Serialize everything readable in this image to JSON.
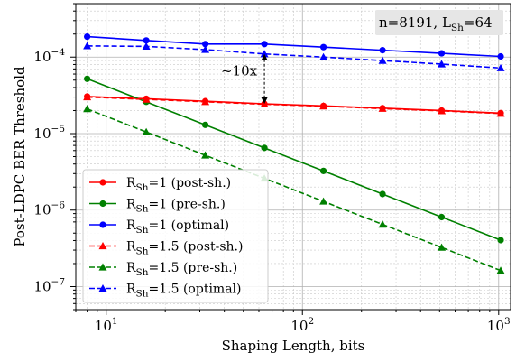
{
  "chart_data": {
    "type": "line",
    "xlabel": "Shaping Length, bits",
    "ylabel": "Post-LDPC BER Threshold",
    "xscale": "log",
    "yscale": "log",
    "xlim": [
      7,
      1150
    ],
    "ylim": [
      5e-08,
      0.0005
    ],
    "xticks": [
      {
        "value": 10,
        "base": "10",
        "exp": "1"
      },
      {
        "value": 100,
        "base": "10",
        "exp": "2"
      },
      {
        "value": 1000,
        "base": "10",
        "exp": "3"
      }
    ],
    "yticks": [
      {
        "value": 1e-07,
        "base": "10",
        "exp": "−7"
      },
      {
        "value": 1e-06,
        "base": "10",
        "exp": "−6"
      },
      {
        "value": 1e-05,
        "base": "10",
        "exp": "−5"
      },
      {
        "value": 0.0001,
        "base": "10",
        "exp": "−4"
      }
    ],
    "grid": true,
    "legend_position": "bottom-left",
    "x": [
      8,
      16,
      32,
      64,
      128,
      256,
      512,
      1024
    ],
    "series": [
      {
        "name_prefix": "R",
        "name_sub": "Sh",
        "name_suffix": "=1 (post-sh.)",
        "color": "#ff0000",
        "linestyle": "solid",
        "marker": "circle",
        "values": [
          3.05e-05,
          2.85e-05,
          2.65e-05,
          2.45e-05,
          2.3e-05,
          2.15e-05,
          2e-05,
          1.85e-05
        ]
      },
      {
        "name_prefix": "R",
        "name_sub": "Sh",
        "name_suffix": "=1 (pre-sh.)",
        "color": "#008000",
        "linestyle": "solid",
        "marker": "circle",
        "values": [
          5.2e-05,
          2.6e-05,
          1.3e-05,
          6.5e-06,
          3.25e-06,
          1.62e-06,
          8.1e-07,
          4.05e-07
        ]
      },
      {
        "name_prefix": "R",
        "name_sub": "Sh",
        "name_suffix": "=1 (optimal)",
        "color": "#0000ff",
        "linestyle": "solid",
        "marker": "circle",
        "values": [
          0.000185,
          0.000165,
          0.000148,
          0.000148,
          0.000135,
          0.000123,
          0.000112,
          0.000102
        ]
      },
      {
        "name_prefix": "R",
        "name_sub": "Sh",
        "name_suffix": "=1.5 (post-sh.)",
        "color": "#ff0000",
        "linestyle": "dashed",
        "marker": "triangle",
        "values": [
          3e-05,
          2.8e-05,
          2.6e-05,
          2.42e-05,
          2.28e-05,
          2.12e-05,
          1.98e-05,
          1.83e-05
        ]
      },
      {
        "name_prefix": "R",
        "name_sub": "Sh",
        "name_suffix": "=1.5 (pre-sh.)",
        "color": "#008000",
        "linestyle": "dashed",
        "marker": "triangle",
        "values": [
          2.1e-05,
          1.05e-05,
          5.2e-06,
          2.6e-06,
          1.3e-06,
          6.5e-07,
          3.25e-07,
          1.62e-07
        ]
      },
      {
        "name_prefix": "R",
        "name_sub": "Sh",
        "name_suffix": "=1.5 (optimal)",
        "color": "#0000ff",
        "linestyle": "dashed",
        "marker": "triangle",
        "values": [
          0.00014,
          0.000138,
          0.000125,
          0.00011,
          0.0001,
          9e-05,
          8.1e-05,
          7.2e-05
        ]
      }
    ],
    "annotations": [
      {
        "type": "double_arrow",
        "x": 64,
        "y_from": 2.45e-05,
        "y_to": 0.00011,
        "label": "~10x"
      },
      {
        "type": "textbox",
        "position": "top-right",
        "text_prefix": "n=8191, L",
        "text_sub": "Sh",
        "text_suffix": "=64"
      }
    ]
  }
}
